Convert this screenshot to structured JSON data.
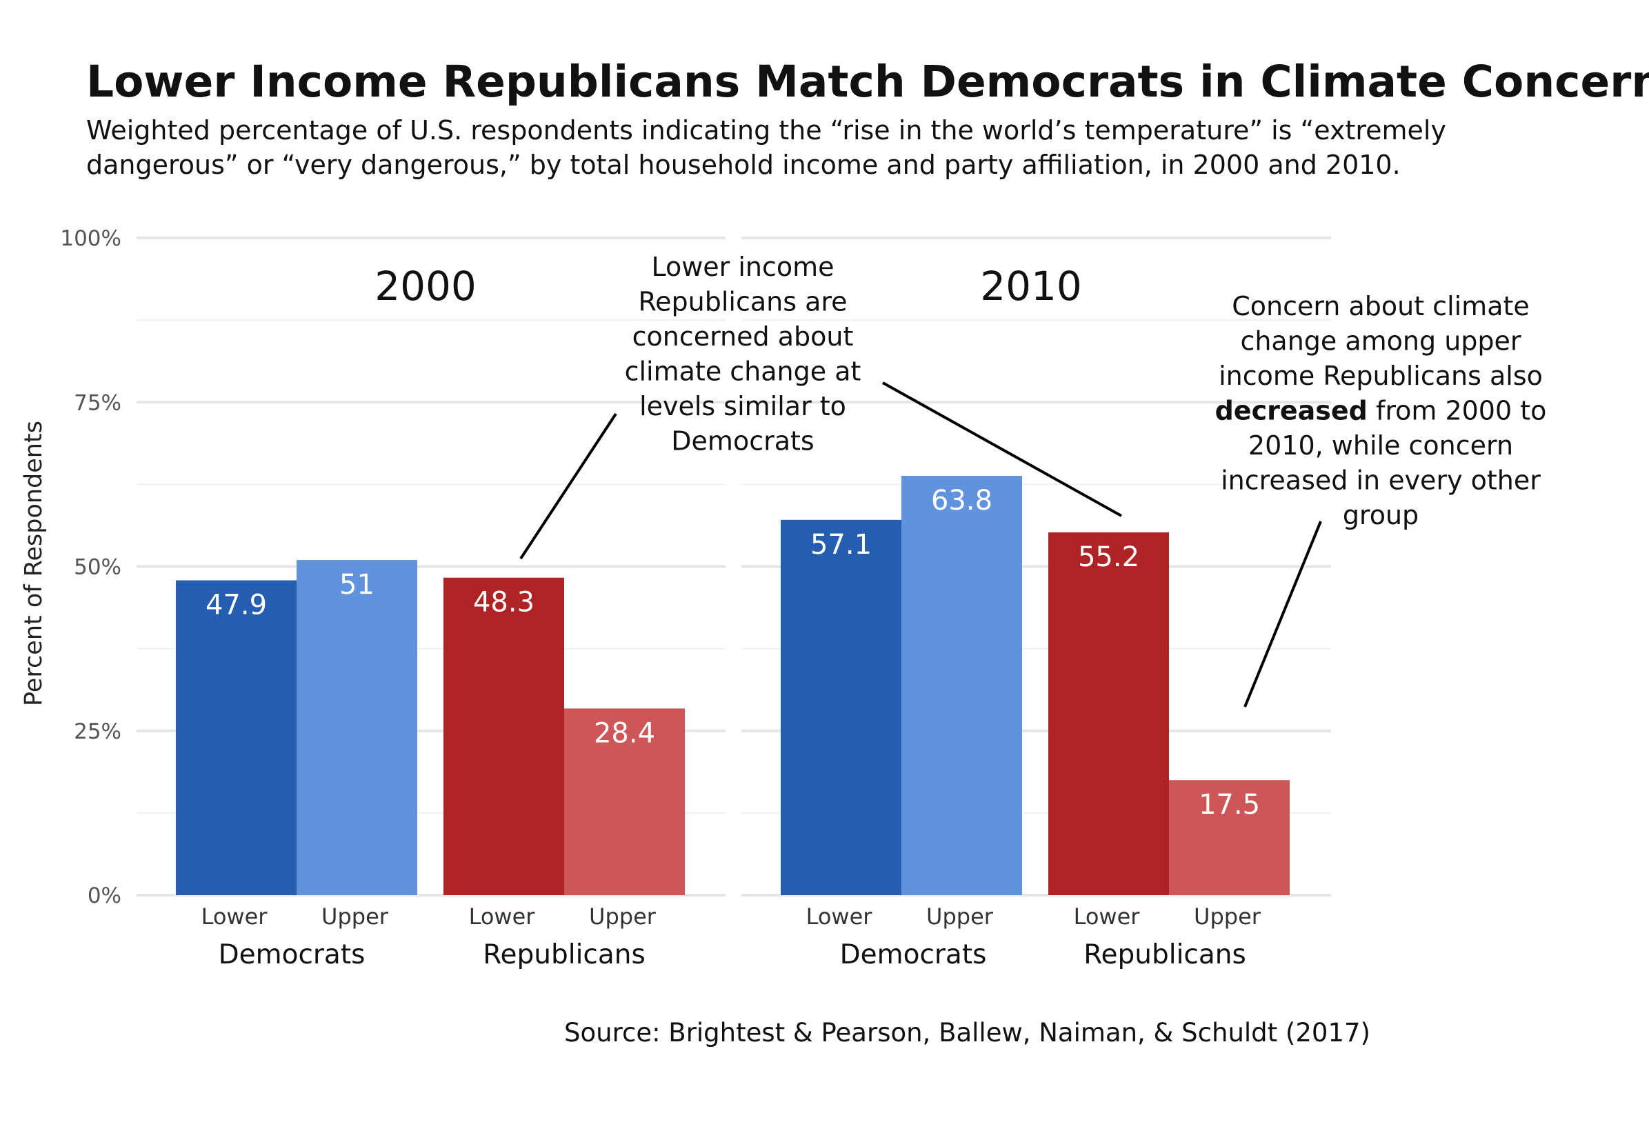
{
  "title": "Lower Income Republicans Match Democrats in Climate Concern",
  "subtitle_lines": [
    "Weighted percentage of U.S. respondents indicating the “rise in the world’s temperature” is “extremely",
    "dangerous” or “very dangerous,” by total household income and party affiliation, in 2000 and 2010."
  ],
  "source": "Source: Brightest & Pearson, Ballew, Naiman, & Schuldt (2017)",
  "annotations": {
    "left": {
      "lines": [
        "Lower income",
        "Republicans are",
        "concerned about",
        "climate change at",
        "levels similar to",
        "Democrats"
      ]
    },
    "right": {
      "lines": [
        "Concern about climate",
        "change among upper",
        "income Republicans also"
      ],
      "bold": "decreased",
      "after_bold": " from 2000 to",
      "rest": [
        "2010, while concern",
        "increased in every other",
        "group"
      ]
    }
  },
  "colors": {
    "dem_lower": "#255db0",
    "dem_upper": "#6092dd",
    "rep_lower": "#b02325",
    "rep_upper": "#cd5657",
    "grid_major": "#e6e6e6",
    "grid_minor": "#f0f0f0"
  },
  "chart_data": {
    "type": "bar",
    "ylabel": "Percent of Respondents",
    "ylim": [
      0,
      100
    ],
    "yticks": [
      "0%",
      "25%",
      "50%",
      "75%",
      "100%"
    ],
    "groups": [
      "Democrats",
      "Republicans"
    ],
    "categories": [
      "Lower",
      "Upper"
    ],
    "panels": [
      {
        "name": "2000",
        "bars": [
          {
            "party": "Democrats",
            "income": "Lower",
            "value": 47.9,
            "label": "47.9"
          },
          {
            "party": "Democrats",
            "income": "Upper",
            "value": 51,
            "label": "51"
          },
          {
            "party": "Republicans",
            "income": "Lower",
            "value": 48.3,
            "label": "48.3"
          },
          {
            "party": "Republicans",
            "income": "Upper",
            "value": 28.4,
            "label": "28.4"
          }
        ]
      },
      {
        "name": "2010",
        "bars": [
          {
            "party": "Democrats",
            "income": "Lower",
            "value": 57.1,
            "label": "57.1"
          },
          {
            "party": "Democrats",
            "income": "Upper",
            "value": 63.8,
            "label": "63.8"
          },
          {
            "party": "Republicans",
            "income": "Lower",
            "value": 55.2,
            "label": "55.2"
          },
          {
            "party": "Republicans",
            "income": "Upper",
            "value": 17.5,
            "label": "17.5"
          }
        ]
      }
    ]
  }
}
